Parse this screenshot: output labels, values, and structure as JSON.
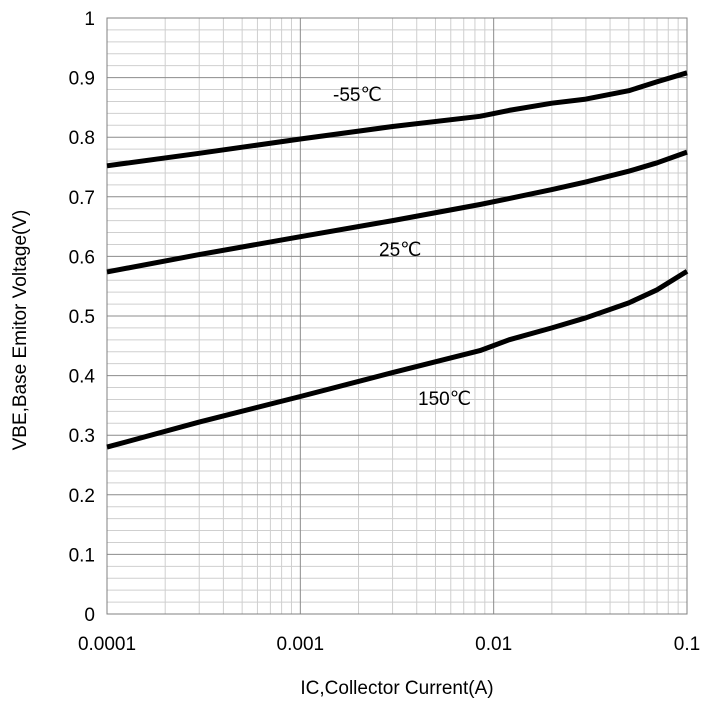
{
  "chart_data": {
    "type": "line",
    "xlabel": "IC,Collector Current(A)",
    "ylabel": "VBE,Base Emitor Voltage(V)",
    "x_scale": "log",
    "xlim": [
      0.0001,
      0.1
    ],
    "ylim": [
      0,
      1
    ],
    "grid": true,
    "x_ticks": [
      "0.0001",
      "0.001",
      "0.01",
      "0.1"
    ],
    "y_ticks": [
      "0",
      "0.1",
      "0.2",
      "0.3",
      "0.4",
      "0.5",
      "0.6",
      "0.7",
      "0.8",
      "0.9",
      "1"
    ],
    "series": [
      {
        "name": "-55℃",
        "x": [
          0.0001,
          0.0003,
          0.001,
          0.003,
          0.0085,
          0.012,
          0.02,
          0.03,
          0.05,
          0.07,
          0.1
        ],
        "y": [
          0.752,
          0.773,
          0.797,
          0.818,
          0.835,
          0.845,
          0.857,
          0.864,
          0.878,
          0.893,
          0.908
        ]
      },
      {
        "name": "25℃",
        "x": [
          0.0001,
          0.0003,
          0.001,
          0.003,
          0.0085,
          0.012,
          0.02,
          0.03,
          0.05,
          0.07,
          0.1
        ],
        "y": [
          0.574,
          0.603,
          0.633,
          0.66,
          0.687,
          0.697,
          0.712,
          0.725,
          0.743,
          0.757,
          0.775
        ]
      },
      {
        "name": "150℃",
        "x": [
          0.0001,
          0.0003,
          0.001,
          0.003,
          0.0085,
          0.012,
          0.02,
          0.03,
          0.05,
          0.07,
          0.1
        ],
        "y": [
          0.28,
          0.322,
          0.365,
          0.405,
          0.442,
          0.46,
          0.48,
          0.497,
          0.522,
          0.544,
          0.575
        ]
      }
    ]
  }
}
